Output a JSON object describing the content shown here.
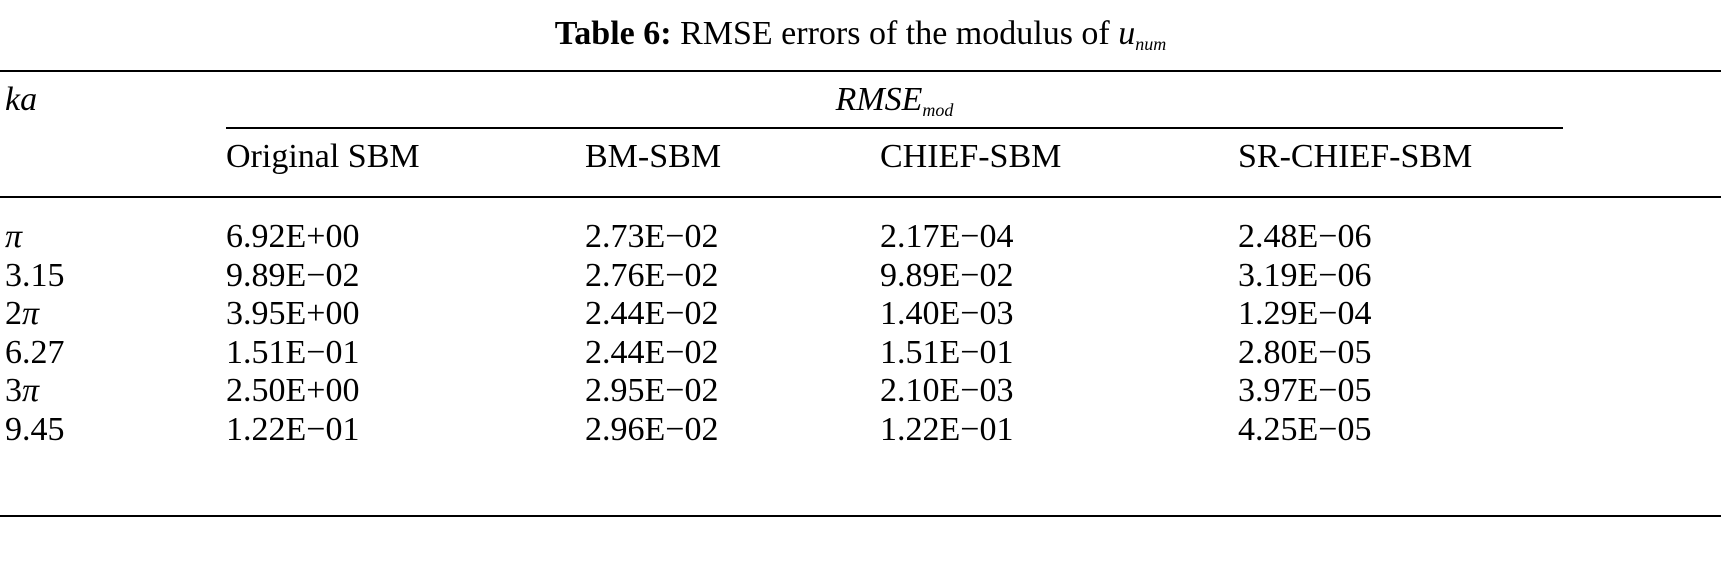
{
  "caption": {
    "label": "Table 6:",
    "text": "RMSE errors of the modulus of",
    "symbol": "u",
    "symbol_sub": "num"
  },
  "table": {
    "row_header": "ka",
    "group_header": "RMSE",
    "group_header_sub": "mod",
    "columns": [
      "Original SBM",
      "BM-SBM",
      "CHIEF-SBM",
      "SR-CHIEF-SBM"
    ],
    "rows": [
      {
        "ka": "π",
        "values": [
          "6.92E+00",
          "2.73E−02",
          "2.17E−04",
          "2.48E−06"
        ]
      },
      {
        "ka": "3.15",
        "values": [
          "9.89E−02",
          "2.76E−02",
          "9.89E−02",
          "3.19E−06"
        ]
      },
      {
        "ka": "2π",
        "values": [
          "3.95E+00",
          "2.44E−02",
          "1.40E−03",
          "1.29E−04"
        ]
      },
      {
        "ka": "6.27",
        "values": [
          "1.51E−01",
          "2.44E−02",
          "1.51E−01",
          "2.80E−05"
        ]
      },
      {
        "ka": "3π",
        "values": [
          "2.50E+00",
          "2.95E−02",
          "2.10E−03",
          "3.97E−05"
        ]
      },
      {
        "ka": "9.45",
        "values": [
          "1.22E−01",
          "2.96E−02",
          "1.22E−01",
          "4.25E−05"
        ]
      }
    ]
  }
}
